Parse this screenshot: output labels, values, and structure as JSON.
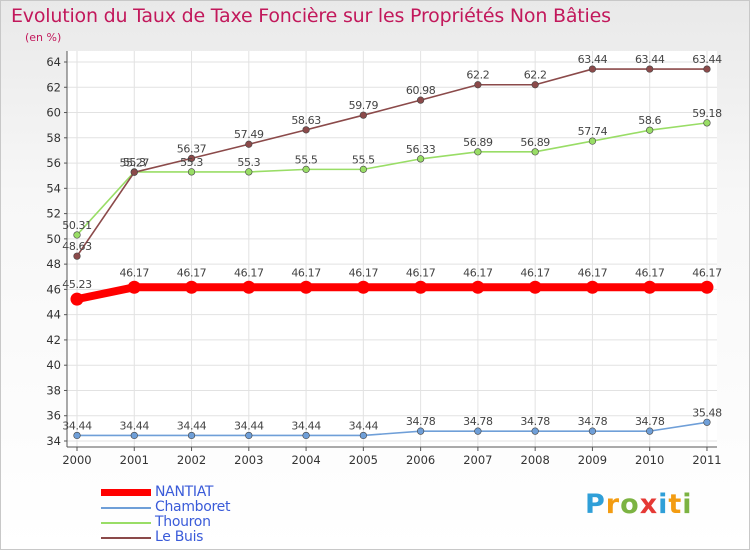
{
  "chart_data": {
    "type": "line",
    "title": "Evolution du Taux de Taxe Foncière sur les Propriétés Non Bâties",
    "unit_label": "(en %)",
    "categories": [
      "2000",
      "2001",
      "2002",
      "2003",
      "2004",
      "2005",
      "2006",
      "2007",
      "2008",
      "2009",
      "2010",
      "2011"
    ],
    "ylim": [
      34,
      64
    ],
    "yticks": [
      34,
      36,
      38,
      40,
      42,
      44,
      46,
      48,
      50,
      52,
      54,
      56,
      58,
      60,
      62,
      64
    ],
    "grid": true,
    "legend_position": "bottom-left",
    "series": [
      {
        "name": "NANTIAT",
        "color": "#ff0000",
        "values": [
          45.23,
          46.17,
          46.17,
          46.17,
          46.17,
          46.17,
          46.17,
          46.17,
          46.17,
          46.17,
          46.17,
          46.17
        ],
        "labels": [
          "45.23",
          "46.17",
          "46.17",
          "46.17",
          "46.17",
          "46.17",
          "46.17",
          "46.17",
          "46.17",
          "46.17",
          "46.17",
          "46.17"
        ]
      },
      {
        "name": "Chamboret",
        "color": "#6f9fd8",
        "values": [
          34.44,
          34.44,
          34.44,
          34.44,
          34.44,
          34.44,
          34.78,
          34.78,
          34.78,
          34.78,
          34.78,
          35.48
        ],
        "labels": [
          "34.44",
          "34.44",
          "34.44",
          "34.44",
          "34.44",
          "34.44",
          "34.78",
          "34.78",
          "34.78",
          "34.78",
          "34.78",
          "35.48"
        ]
      },
      {
        "name": "Thouron",
        "color": "#99dd66",
        "values": [
          50.31,
          55.3,
          55.3,
          55.3,
          55.5,
          55.5,
          56.33,
          56.89,
          56.89,
          57.74,
          58.6,
          59.18
        ],
        "labels": [
          "50.31",
          "55.3",
          "55.3",
          "55.3",
          "55.5",
          "55.5",
          "56.33",
          "56.89",
          "56.89",
          "57.74",
          "58.6",
          "59.18"
        ]
      },
      {
        "name": "Le Buis",
        "color": "#8b4a4a",
        "values": [
          48.63,
          55.27,
          56.37,
          57.49,
          58.63,
          59.79,
          60.98,
          62.2,
          62.2,
          63.44,
          63.44,
          63.44
        ],
        "labels": [
          "48.63",
          "55.27",
          "56.37",
          "57.49",
          "58.63",
          "59.79",
          "60.98",
          "62.2",
          "62.2",
          "63.44",
          "63.44",
          "63.44"
        ]
      }
    ]
  },
  "brand": {
    "letters": [
      "P",
      "r",
      "o",
      "x",
      "i",
      "t",
      "i"
    ],
    "colors": [
      "#2f9fd8",
      "#f39c12",
      "#7cb342",
      "#e53935",
      "#2f9fd8",
      "#f39c12",
      "#7cb342"
    ]
  }
}
